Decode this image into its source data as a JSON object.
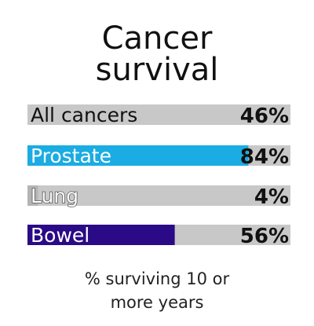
{
  "chart_data": {
    "type": "bar",
    "orientation": "horizontal",
    "title_lines": [
      "Cancer",
      "survival"
    ],
    "categories": [
      "All cancers",
      "Prostate",
      "Lung",
      "Bowel"
    ],
    "values": [
      46,
      84,
      4,
      56
    ],
    "value_labels": [
      "46%",
      "84%",
      "4%",
      "56%"
    ],
    "xlim": [
      0,
      100
    ],
    "colors": [
      "#c8c8c8",
      "#1aace2",
      "#b4b4b4",
      "#2a0a86"
    ],
    "track_color": "#c8c8c8",
    "footnote_lines": [
      "% surviving 10 or",
      "more years"
    ],
    "grid": false
  }
}
